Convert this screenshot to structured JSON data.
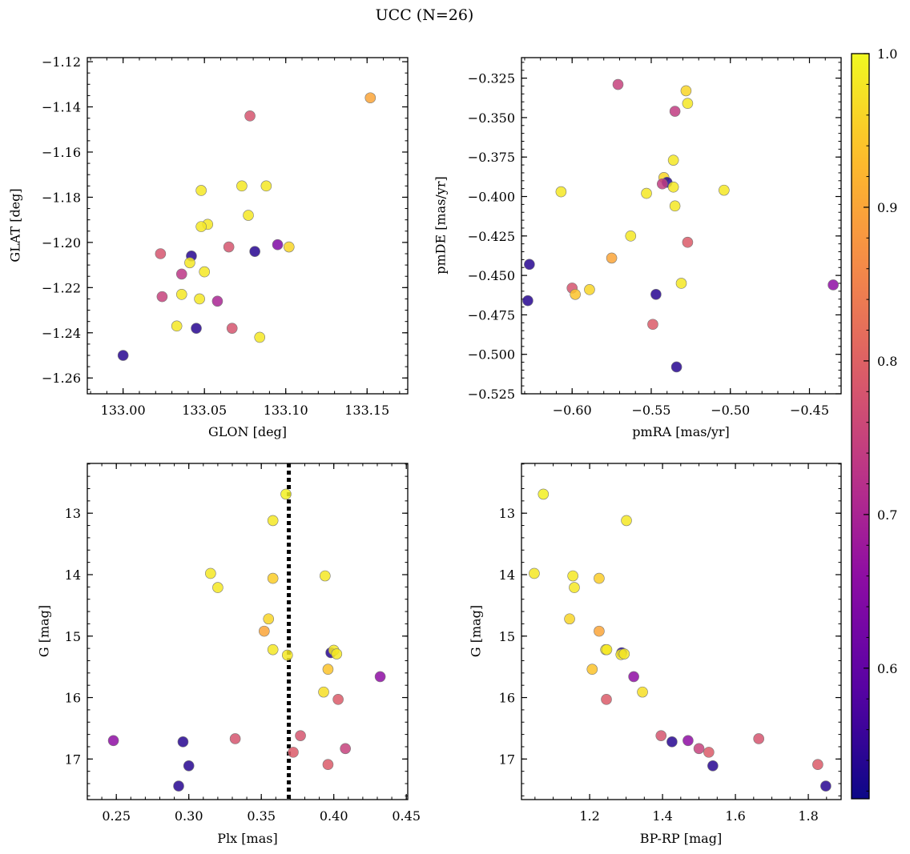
{
  "title": "UCC (N=26)",
  "colorbar": {
    "range": [
      0.515,
      1.0
    ],
    "ticks": [
      0.6,
      0.7,
      0.8,
      0.9,
      1.0
    ],
    "tick_labels": [
      "0.6",
      "0.7",
      "0.8",
      "0.9",
      "1.0"
    ],
    "colormap": "plasma"
  },
  "chart_data": [
    {
      "type": "scatter",
      "xlabel": "GLON [deg]",
      "ylabel": "GLAT [deg]",
      "xlim": [
        132.978,
        133.175
      ],
      "ylim": [
        -1.267,
        -1.1182
      ],
      "xticks": [
        133.0,
        133.05,
        133.1,
        133.15
      ],
      "xtick_labels": [
        "133.00",
        "133.05",
        "133.10",
        "133.15"
      ],
      "xminor": 0.01,
      "yticks": [
        -1.26,
        -1.24,
        -1.22,
        -1.2,
        -1.18,
        -1.16,
        -1.14,
        -1.12
      ],
      "ytick_labels": [
        "−1.26",
        "−1.24",
        "−1.22",
        "−1.20",
        "−1.18",
        "−1.16",
        "−1.14",
        "−1.12"
      ],
      "yminor": 0.005,
      "points": [
        [
          133.152,
          -1.136,
          0.9
        ],
        [
          133.078,
          -1.144,
          0.78
        ],
        [
          133.048,
          -1.177,
          0.98
        ],
        [
          133.073,
          -1.175,
          0.98
        ],
        [
          133.088,
          -1.175,
          0.98
        ],
        [
          133.077,
          -1.188,
          0.98
        ],
        [
          133.052,
          -1.192,
          0.98
        ],
        [
          133.048,
          -1.193,
          0.98
        ],
        [
          133.042,
          -1.206,
          0.54
        ],
        [
          133.041,
          -1.209,
          0.98
        ],
        [
          133.023,
          -1.205,
          0.78
        ],
        [
          133.065,
          -1.202,
          0.78
        ],
        [
          133.081,
          -1.204,
          0.54
        ],
        [
          133.095,
          -1.201,
          0.64
        ],
        [
          133.102,
          -1.202,
          0.96
        ],
        [
          133.036,
          -1.214,
          0.73
        ],
        [
          133.05,
          -1.213,
          0.98
        ],
        [
          133.024,
          -1.224,
          0.75
        ],
        [
          133.036,
          -1.223,
          0.98
        ],
        [
          133.047,
          -1.225,
          0.98
        ],
        [
          133.058,
          -1.226,
          0.7
        ],
        [
          133.033,
          -1.237,
          0.98
        ],
        [
          133.045,
          -1.238,
          0.54
        ],
        [
          133.067,
          -1.238,
          0.78
        ],
        [
          133.084,
          -1.242,
          0.98
        ],
        [
          133.0,
          -1.25,
          0.54
        ]
      ]
    },
    {
      "type": "scatter",
      "xlabel": "pmRA [mas/yr]",
      "ylabel": "pmDE [mas/yr]",
      "xlim": [
        -0.632,
        -0.43
      ],
      "ylim": [
        -0.525,
        -0.312
      ],
      "xticks": [
        -0.6,
        -0.55,
        -0.5,
        -0.45
      ],
      "xtick_labels": [
        "−0.60",
        "−0.55",
        "−0.50",
        "−0.45"
      ],
      "xminor": 0.01,
      "yticks": [
        -0.525,
        -0.5,
        -0.475,
        -0.45,
        -0.425,
        -0.4,
        -0.375,
        -0.35,
        -0.325
      ],
      "ytick_labels": [
        "−0.525",
        "−0.500",
        "−0.475",
        "−0.450",
        "−0.425",
        "−0.400",
        "−0.375",
        "−0.350",
        "−0.325"
      ],
      "yminor": 0.005,
      "points": [
        [
          -0.571,
          -0.329,
          0.75
        ],
        [
          -0.528,
          -0.333,
          0.96
        ],
        [
          -0.527,
          -0.341,
          0.98
        ],
        [
          -0.535,
          -0.346,
          0.74
        ],
        [
          -0.536,
          -0.377,
          0.98
        ],
        [
          -0.542,
          -0.388,
          0.96
        ],
        [
          -0.54,
          -0.391,
          0.54
        ],
        [
          -0.543,
          -0.392,
          0.74
        ],
        [
          -0.536,
          -0.394,
          0.98
        ],
        [
          -0.607,
          -0.397,
          0.98
        ],
        [
          -0.553,
          -0.398,
          0.98
        ],
        [
          -0.504,
          -0.396,
          0.98
        ],
        [
          -0.535,
          -0.406,
          0.98
        ],
        [
          -0.563,
          -0.425,
          0.98
        ],
        [
          -0.527,
          -0.429,
          0.79
        ],
        [
          -0.575,
          -0.439,
          0.9
        ],
        [
          -0.627,
          -0.443,
          0.54
        ],
        [
          -0.6,
          -0.458,
          0.78
        ],
        [
          -0.589,
          -0.459,
          0.96
        ],
        [
          -0.598,
          -0.462,
          0.94
        ],
        [
          -0.531,
          -0.455,
          0.98
        ],
        [
          -0.547,
          -0.462,
          0.54
        ],
        [
          -0.628,
          -0.466,
          0.54
        ],
        [
          -0.435,
          -0.456,
          0.66
        ],
        [
          -0.549,
          -0.481,
          0.79
        ],
        [
          -0.534,
          -0.508,
          0.54
        ]
      ]
    },
    {
      "type": "scatter",
      "xlabel": "Plx [mas]",
      "ylabel": "G [mag]",
      "xlim": [
        0.23,
        0.451
      ],
      "ylim": [
        17.66,
        12.19
      ],
      "y_inverted": true,
      "xticks": [
        0.25,
        0.3,
        0.35,
        0.4,
        0.45
      ],
      "xtick_labels": [
        "0.25",
        "0.30",
        "0.35",
        "0.40",
        "0.45"
      ],
      "xminor": 0.01,
      "yticks": [
        13,
        14,
        15,
        16,
        17
      ],
      "ytick_labels": [
        "13",
        "14",
        "15",
        "16",
        "17"
      ],
      "yminor": 0.2,
      "vline": 0.369,
      "points": [
        [
          0.367,
          12.69,
          0.99
        ],
        [
          0.358,
          13.12,
          0.98
        ],
        [
          0.315,
          13.98,
          0.98
        ],
        [
          0.32,
          14.21,
          0.98
        ],
        [
          0.358,
          14.06,
          0.95
        ],
        [
          0.394,
          14.02,
          0.98
        ],
        [
          0.355,
          14.72,
          0.96
        ],
        [
          0.352,
          14.92,
          0.9
        ],
        [
          0.358,
          15.22,
          0.98
        ],
        [
          0.368,
          15.31,
          0.98
        ],
        [
          0.398,
          15.27,
          0.54
        ],
        [
          0.4,
          15.23,
          0.98
        ],
        [
          0.402,
          15.29,
          0.98
        ],
        [
          0.396,
          15.54,
          0.94
        ],
        [
          0.432,
          15.66,
          0.66
        ],
        [
          0.393,
          15.91,
          0.97
        ],
        [
          0.403,
          16.03,
          0.79
        ],
        [
          0.377,
          16.62,
          0.78
        ],
        [
          0.372,
          16.89,
          0.79
        ],
        [
          0.332,
          16.67,
          0.78
        ],
        [
          0.248,
          16.7,
          0.66
        ],
        [
          0.296,
          16.72,
          0.54
        ],
        [
          0.3,
          17.11,
          0.54
        ],
        [
          0.293,
          17.44,
          0.54
        ],
        [
          0.408,
          16.83,
          0.75
        ],
        [
          0.396,
          17.09,
          0.79
        ]
      ]
    },
    {
      "type": "scatter",
      "xlabel": "BP-RP [mag]",
      "ylabel": "G [mag]",
      "xlim": [
        1.013,
        1.89
      ],
      "ylim": [
        17.66,
        12.19
      ],
      "y_inverted": true,
      "xticks": [
        1.2,
        1.4,
        1.6,
        1.8
      ],
      "xtick_labels": [
        "1.2",
        "1.4",
        "1.6",
        "1.8"
      ],
      "xminor": 0.05,
      "yticks": [
        13,
        14,
        15,
        16,
        17
      ],
      "ytick_labels": [
        "13",
        "14",
        "15",
        "16",
        "17"
      ],
      "yminor": 0.2,
      "points": [
        [
          1.073,
          12.69,
          0.99
        ],
        [
          1.301,
          13.12,
          0.98
        ],
        [
          1.048,
          13.98,
          0.98
        ],
        [
          1.154,
          14.02,
          0.98
        ],
        [
          1.158,
          14.21,
          0.98
        ],
        [
          1.226,
          14.06,
          0.95
        ],
        [
          1.145,
          14.72,
          0.96
        ],
        [
          1.226,
          14.92,
          0.9
        ],
        [
          1.244,
          15.22,
          0.98
        ],
        [
          1.247,
          15.22,
          0.98
        ],
        [
          1.288,
          15.27,
          0.54
        ],
        [
          1.286,
          15.3,
          0.98
        ],
        [
          1.295,
          15.29,
          0.98
        ],
        [
          1.207,
          15.54,
          0.94
        ],
        [
          1.321,
          15.66,
          0.66
        ],
        [
          1.345,
          15.91,
          0.97
        ],
        [
          1.246,
          16.03,
          0.79
        ],
        [
          1.396,
          16.62,
          0.78
        ],
        [
          1.426,
          16.72,
          0.54
        ],
        [
          1.47,
          16.7,
          0.66
        ],
        [
          1.5,
          16.83,
          0.75
        ],
        [
          1.527,
          16.89,
          0.79
        ],
        [
          1.538,
          17.11,
          0.54
        ],
        [
          1.664,
          16.67,
          0.78
        ],
        [
          1.826,
          17.09,
          0.79
        ],
        [
          1.848,
          17.44,
          0.54
        ]
      ]
    }
  ]
}
